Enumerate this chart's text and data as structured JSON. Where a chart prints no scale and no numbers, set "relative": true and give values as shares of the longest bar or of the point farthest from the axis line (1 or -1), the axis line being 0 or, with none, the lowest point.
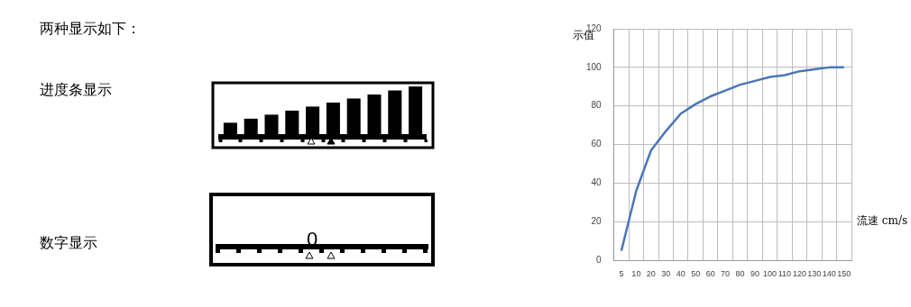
{
  "chart_data": [
    {
      "type": "bar",
      "categories": [
        null,
        null,
        null,
        null,
        null,
        null,
        null,
        null,
        null,
        null
      ],
      "relative": true,
      "grid": false,
      "legend": false,
      "series": [
        {
          "color": "#000000",
          "values": [
            0.28,
            0.36,
            0.44,
            0.52,
            0.6,
            0.68,
            0.76,
            0.84,
            0.92,
            1
          ]
        }
      ]
    },
    {
      "type": "line",
      "categories": [
        "5",
        "10",
        "20",
        "30",
        "40",
        "50",
        "60",
        "70",
        "80",
        "90",
        "100",
        "110",
        "120",
        "130",
        "140",
        "150"
      ],
      "series": [
        {
          "color": "#4a76b8",
          "values": [
            5,
            36,
            57,
            67,
            76,
            81,
            85,
            88,
            91,
            93,
            95,
            96,
            98,
            99,
            100,
            100
          ]
        }
      ],
      "ylim": [
        0,
        120
      ],
      "yticks": [
        0,
        20,
        40,
        60,
        80,
        100,
        120
      ],
      "ylabel": "示值",
      "xlabel": "流速 cm/s",
      "grid": true,
      "legend": false,
      "marker": "none",
      "line_style": "solid",
      "annotations": [
        "两种显示如下：",
        "进度条显示",
        "数字显示",
        "0"
      ]
    }
  ]
}
